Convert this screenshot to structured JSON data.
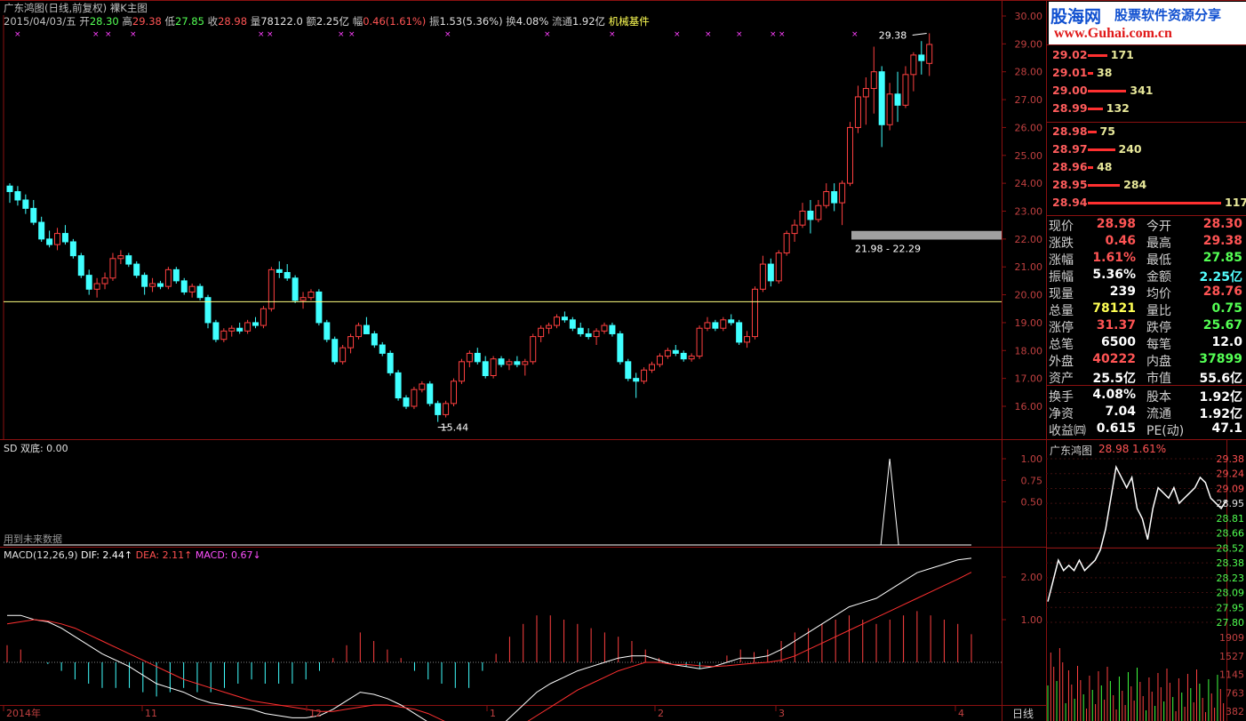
{
  "window": {
    "title": "广东鸿图(日线,前复权) 裸K主图"
  },
  "info": {
    "date": "2015/04/03/五",
    "open_label": "开",
    "open": "28.30",
    "high_label": "高",
    "high": "29.38",
    "low_label": "低",
    "low": "27.85",
    "close_label": "收",
    "close": "28.98",
    "vol_label": "量",
    "vol": "78122.0",
    "amount_label": "额",
    "amount": "2.25亿",
    "chg_label": "幅",
    "chg": "0.46(1.61%)",
    "amp_label": "振",
    "amp": "1.53(5.36%)",
    "turn_label": "换",
    "turn": "4.08%",
    "float_label": "流通",
    "float": "1.92亿",
    "sector": "机械基件"
  },
  "main_chart": {
    "price_axis": [
      "30.00",
      "29.00",
      "28.00",
      "27.00",
      "26.00",
      "25.00",
      "24.00",
      "23.00",
      "22.00",
      "21.00",
      "20.00",
      "19.00",
      "18.00",
      "17.00",
      "16.00"
    ],
    "high_marker": "29.38",
    "low_marker": "15.44",
    "zone_label": "21.98 - 22.29",
    "hline_price": 19.75
  },
  "sd_panel": {
    "label": "SD 双底: 0.00",
    "note": "用到未来数据",
    "axis": [
      "1.00",
      "0.75",
      "0.50"
    ]
  },
  "macd_panel": {
    "label": "MACD(12,26,9)",
    "dif": "DIF: 2.44",
    "dea": "DEA: 2.11",
    "macd": "MACD: 0.67",
    "axis": [
      "2.00",
      "1.00"
    ]
  },
  "time_axis": [
    "2014年",
    "11",
    "12",
    "1",
    "2",
    "3",
    "4"
  ],
  "period_button": "日线",
  "logo": {
    "brand": "股海网",
    "slogan": "股票软件资源分享",
    "url": "www.Guhai.com.cn"
  },
  "order_book": {
    "asks": [
      {
        "price": "29.02",
        "vol": "171"
      },
      {
        "price": "29.01",
        "vol": "38"
      },
      {
        "price": "29.00",
        "vol": "341"
      },
      {
        "price": "28.99",
        "vol": "132"
      }
    ],
    "bids": [
      {
        "price": "28.98",
        "vol": "75"
      },
      {
        "price": "28.97",
        "vol": "240"
      },
      {
        "price": "28.96",
        "vol": "48"
      },
      {
        "price": "28.95",
        "vol": "284"
      },
      {
        "price": "28.94",
        "vol": "1179"
      }
    ]
  },
  "stats": [
    {
      "l": "现价",
      "v": "28.98",
      "c": "red",
      "l2": "今开",
      "v2": "28.30",
      "c2": "red"
    },
    {
      "l": "涨跌",
      "v": "0.46",
      "c": "red",
      "l2": "最高",
      "v2": "29.38",
      "c2": "red"
    },
    {
      "l": "涨幅",
      "v": "1.61%",
      "c": "red",
      "l2": "最低",
      "v2": "27.85",
      "c2": "green"
    },
    {
      "l": "振幅",
      "v": "5.36%",
      "c": "white",
      "l2": "金额",
      "v2": "2.25亿",
      "c2": "cyan"
    },
    {
      "l": "现量",
      "v": "239",
      "c": "white",
      "l2": "均价",
      "v2": "28.76",
      "c2": "red"
    },
    {
      "l": "总量",
      "v": "78121",
      "c": "yellow",
      "l2": "量比",
      "v2": "0.75",
      "c2": "green"
    },
    {
      "l": "涨停",
      "v": "31.37",
      "c": "red",
      "l2": "跌停",
      "v2": "25.67",
      "c2": "green"
    },
    {
      "l": "总笔",
      "v": "6500",
      "c": "white",
      "l2": "每笔",
      "v2": "12.0",
      "c2": "white"
    },
    {
      "l": "外盘",
      "v": "40222",
      "c": "red",
      "l2": "内盘",
      "v2": "37899",
      "c2": "green"
    },
    {
      "l": "资产",
      "v": "25.5亿",
      "c": "white",
      "l2": "市值",
      "v2": "55.6亿",
      "c2": "white"
    },
    {
      "l": "换手",
      "v": "4.08%",
      "c": "white",
      "l2": "股本",
      "v2": "1.92亿",
      "c2": "white"
    },
    {
      "l": "净资",
      "v": "7.04",
      "c": "white",
      "l2": "流通",
      "v2": "1.92亿",
      "c2": "white"
    },
    {
      "l": "收益㈣",
      "v": "0.615",
      "c": "white",
      "l2": "PE(动)",
      "v2": "47.1",
      "c2": "white"
    }
  ],
  "intraday": {
    "title": "广东鸿图",
    "price": "28.98",
    "pct": "1.61%",
    "price_axis": [
      "29.38",
      "29.24",
      "29.09",
      "28.95",
      "28.81",
      "28.66",
      "28.52",
      "28.38",
      "28.23",
      "28.09",
      "27.95",
      "27.80"
    ],
    "vol_axis": [
      "1909",
      "1527",
      "1145",
      "763",
      "382"
    ]
  },
  "chart_data": {
    "type": "candlestick",
    "ohlc": [
      [
        23.9,
        24.0,
        23.3,
        23.7
      ],
      [
        23.7,
        23.9,
        23.2,
        23.4
      ],
      [
        23.4,
        23.6,
        22.9,
        23.1
      ],
      [
        23.1,
        23.4,
        22.5,
        22.6
      ],
      [
        22.6,
        22.8,
        21.9,
        22.0
      ],
      [
        22.0,
        22.3,
        21.7,
        21.8
      ],
      [
        21.8,
        22.4,
        21.6,
        22.2
      ],
      [
        22.2,
        22.5,
        21.8,
        21.9
      ],
      [
        21.9,
        22.0,
        21.3,
        21.4
      ],
      [
        21.4,
        21.5,
        20.6,
        20.7
      ],
      [
        20.7,
        20.9,
        20.0,
        20.2
      ],
      [
        20.2,
        20.6,
        19.9,
        20.4
      ],
      [
        20.4,
        20.8,
        20.2,
        20.6
      ],
      [
        20.6,
        21.5,
        20.5,
        21.3
      ],
      [
        21.3,
        21.6,
        21.1,
        21.4
      ],
      [
        21.4,
        21.5,
        21.0,
        21.1
      ],
      [
        21.1,
        21.2,
        20.6,
        20.7
      ],
      [
        20.7,
        20.8,
        20.0,
        20.3
      ],
      [
        20.3,
        20.6,
        20.1,
        20.4
      ],
      [
        20.4,
        20.5,
        20.2,
        20.3
      ],
      [
        20.3,
        21.0,
        20.2,
        20.9
      ],
      [
        20.9,
        21.0,
        20.4,
        20.5
      ],
      [
        20.5,
        20.6,
        20.0,
        20.1
      ],
      [
        20.1,
        20.4,
        19.9,
        20.3
      ],
      [
        20.3,
        20.4,
        19.8,
        19.9
      ],
      [
        19.9,
        20.0,
        18.8,
        19.0
      ],
      [
        19.0,
        19.1,
        18.3,
        18.4
      ],
      [
        18.4,
        18.8,
        18.3,
        18.7
      ],
      [
        18.7,
        18.9,
        18.5,
        18.8
      ],
      [
        18.8,
        19.0,
        18.6,
        18.7
      ],
      [
        18.7,
        19.1,
        18.6,
        19.0
      ],
      [
        19.0,
        19.2,
        18.8,
        18.9
      ],
      [
        18.9,
        19.6,
        18.8,
        19.5
      ],
      [
        19.5,
        21.0,
        19.4,
        20.9
      ],
      [
        20.9,
        21.2,
        20.6,
        20.8
      ],
      [
        20.8,
        21.1,
        20.5,
        20.6
      ],
      [
        20.6,
        20.7,
        19.7,
        19.8
      ],
      [
        19.8,
        20.1,
        19.5,
        19.9
      ],
      [
        19.9,
        20.2,
        19.8,
        20.1
      ],
      [
        20.1,
        20.2,
        18.9,
        19.0
      ],
      [
        19.0,
        19.1,
        18.3,
        18.4
      ],
      [
        18.4,
        18.5,
        17.5,
        17.6
      ],
      [
        17.6,
        18.2,
        17.5,
        18.1
      ],
      [
        18.1,
        18.6,
        17.9,
        18.5
      ],
      [
        18.5,
        19.0,
        18.4,
        18.9
      ],
      [
        18.9,
        19.2,
        18.7,
        18.6
      ],
      [
        18.6,
        18.7,
        18.1,
        18.2
      ],
      [
        18.2,
        18.3,
        17.8,
        17.9
      ],
      [
        17.9,
        18.0,
        17.1,
        17.2
      ],
      [
        17.2,
        17.3,
        16.2,
        16.3
      ],
      [
        16.3,
        16.4,
        15.9,
        16.0
      ],
      [
        16.0,
        16.7,
        15.9,
        16.6
      ],
      [
        16.6,
        16.9,
        16.5,
        16.8
      ],
      [
        16.8,
        16.9,
        16.0,
        16.1
      ],
      [
        16.1,
        16.2,
        15.44,
        15.7
      ],
      [
        15.7,
        16.2,
        15.6,
        16.1
      ],
      [
        16.1,
        17.0,
        16.0,
        16.9
      ],
      [
        16.9,
        17.7,
        16.8,
        17.6
      ],
      [
        17.6,
        18.0,
        17.4,
        17.9
      ],
      [
        17.9,
        18.1,
        17.5,
        17.6
      ],
      [
        17.6,
        17.8,
        17.0,
        17.1
      ],
      [
        17.1,
        17.8,
        17.0,
        17.7
      ],
      [
        17.7,
        17.8,
        17.4,
        17.5
      ],
      [
        17.5,
        17.7,
        17.3,
        17.6
      ],
      [
        17.6,
        17.8,
        17.4,
        17.5
      ],
      [
        17.5,
        17.7,
        17.1,
        17.6
      ],
      [
        17.6,
        18.6,
        17.5,
        18.5
      ],
      [
        18.5,
        18.9,
        18.3,
        18.8
      ],
      [
        18.8,
        19.0,
        18.6,
        18.9
      ],
      [
        18.9,
        19.3,
        18.8,
        19.2
      ],
      [
        19.2,
        19.4,
        19.0,
        19.1
      ],
      [
        19.1,
        19.2,
        18.7,
        18.8
      ],
      [
        18.8,
        19.0,
        18.5,
        18.6
      ],
      [
        18.6,
        18.8,
        18.4,
        18.5
      ],
      [
        18.5,
        18.8,
        18.2,
        18.7
      ],
      [
        18.7,
        19.0,
        18.6,
        18.9
      ],
      [
        18.9,
        19.0,
        18.5,
        18.6
      ],
      [
        18.6,
        18.7,
        17.5,
        17.6
      ],
      [
        17.6,
        17.7,
        16.9,
        17.0
      ],
      [
        17.0,
        17.2,
        16.3,
        16.9
      ],
      [
        16.9,
        17.4,
        16.8,
        17.3
      ],
      [
        17.3,
        17.6,
        17.2,
        17.5
      ],
      [
        17.5,
        17.9,
        17.4,
        17.8
      ],
      [
        17.8,
        18.1,
        17.7,
        18.0
      ],
      [
        18.0,
        18.2,
        17.8,
        17.9
      ],
      [
        17.9,
        18.0,
        17.6,
        17.7
      ],
      [
        17.7,
        17.9,
        17.6,
        17.8
      ],
      [
        17.8,
        18.9,
        17.7,
        18.8
      ],
      [
        18.8,
        19.2,
        18.7,
        19.0
      ],
      [
        19.0,
        19.1,
        18.7,
        18.8
      ],
      [
        18.8,
        19.2,
        18.7,
        19.1
      ],
      [
        19.1,
        19.3,
        18.9,
        19.0
      ],
      [
        19.0,
        19.1,
        18.2,
        18.3
      ],
      [
        18.3,
        18.7,
        18.1,
        18.5
      ],
      [
        18.5,
        20.3,
        18.4,
        20.2
      ],
      [
        20.2,
        21.4,
        20.1,
        21.1
      ],
      [
        21.1,
        21.3,
        20.3,
        20.5
      ],
      [
        20.5,
        21.6,
        20.4,
        21.5
      ],
      [
        21.5,
        22.3,
        21.4,
        22.2
      ],
      [
        22.2,
        22.7,
        21.9,
        22.5
      ],
      [
        22.5,
        23.3,
        22.4,
        23.0
      ],
      [
        23.0,
        23.4,
        22.2,
        22.7
      ],
      [
        22.7,
        23.4,
        22.6,
        23.2
      ],
      [
        23.2,
        24.0,
        23.1,
        23.7
      ],
      [
        23.7,
        24.0,
        23.0,
        23.3
      ],
      [
        23.3,
        24.1,
        22.5,
        24.0
      ],
      [
        24.0,
        26.2,
        23.9,
        26.0
      ],
      [
        26.0,
        27.5,
        25.8,
        27.1
      ],
      [
        27.1,
        27.8,
        26.1,
        27.4
      ],
      [
        27.4,
        28.9,
        26.5,
        28.0
      ],
      [
        28.0,
        28.2,
        25.3,
        26.1
      ],
      [
        26.1,
        27.6,
        25.9,
        27.2
      ],
      [
        27.2,
        28.0,
        26.2,
        26.8
      ],
      [
        26.8,
        28.2,
        26.7,
        27.9
      ],
      [
        27.9,
        28.7,
        27.3,
        28.6
      ],
      [
        28.6,
        29.1,
        27.9,
        28.4
      ],
      [
        28.3,
        29.38,
        27.85,
        28.98
      ]
    ],
    "macd_dif": [
      1.1,
      1.1,
      1.0,
      0.95,
      0.8,
      0.6,
      0.4,
      0.2,
      0.05,
      -0.1,
      -0.3,
      -0.5,
      -0.6,
      -0.7,
      -0.85,
      -0.95,
      -1.0,
      -1.05,
      -1.1,
      -1.2,
      -1.25,
      -1.3,
      -1.3,
      -1.25,
      -1.1,
      -0.9,
      -0.7,
      -0.75,
      -0.85,
      -1.0,
      -1.2,
      -1.4,
      -1.6,
      -1.8,
      -2.0,
      -1.85,
      -1.6,
      -1.3,
      -1.0,
      -0.7,
      -0.5,
      -0.35,
      -0.2,
      -0.1,
      0.0,
      0.1,
      0.15,
      0.15,
      0.05,
      -0.05,
      -0.1,
      -0.15,
      -0.1,
      0.0,
      0.1,
      0.1,
      0.15,
      0.3,
      0.5,
      0.7,
      0.9,
      1.1,
      1.3,
      1.4,
      1.5,
      1.7,
      1.9,
      2.1,
      2.2,
      2.3,
      2.4,
      2.44
    ],
    "macd_dea": [
      0.9,
      0.95,
      1.0,
      0.97,
      0.9,
      0.8,
      0.65,
      0.5,
      0.35,
      0.2,
      0.05,
      -0.1,
      -0.25,
      -0.4,
      -0.5,
      -0.6,
      -0.7,
      -0.8,
      -0.9,
      -0.95,
      -1.0,
      -1.05,
      -1.1,
      -1.15,
      -1.15,
      -1.1,
      -1.05,
      -1.0,
      -1.0,
      -1.05,
      -1.1,
      -1.2,
      -1.35,
      -1.5,
      -1.7,
      -1.75,
      -1.7,
      -1.6,
      -1.45,
      -1.25,
      -1.05,
      -0.85,
      -0.65,
      -0.5,
      -0.35,
      -0.2,
      -0.1,
      0.0,
      0.0,
      -0.05,
      -0.05,
      -0.08,
      -0.1,
      -0.08,
      -0.05,
      -0.02,
      0.0,
      0.05,
      0.15,
      0.3,
      0.45,
      0.6,
      0.75,
      0.9,
      1.05,
      1.2,
      1.35,
      1.5,
      1.65,
      1.8,
      1.95,
      2.11
    ],
    "sd_signal_index": 111
  }
}
